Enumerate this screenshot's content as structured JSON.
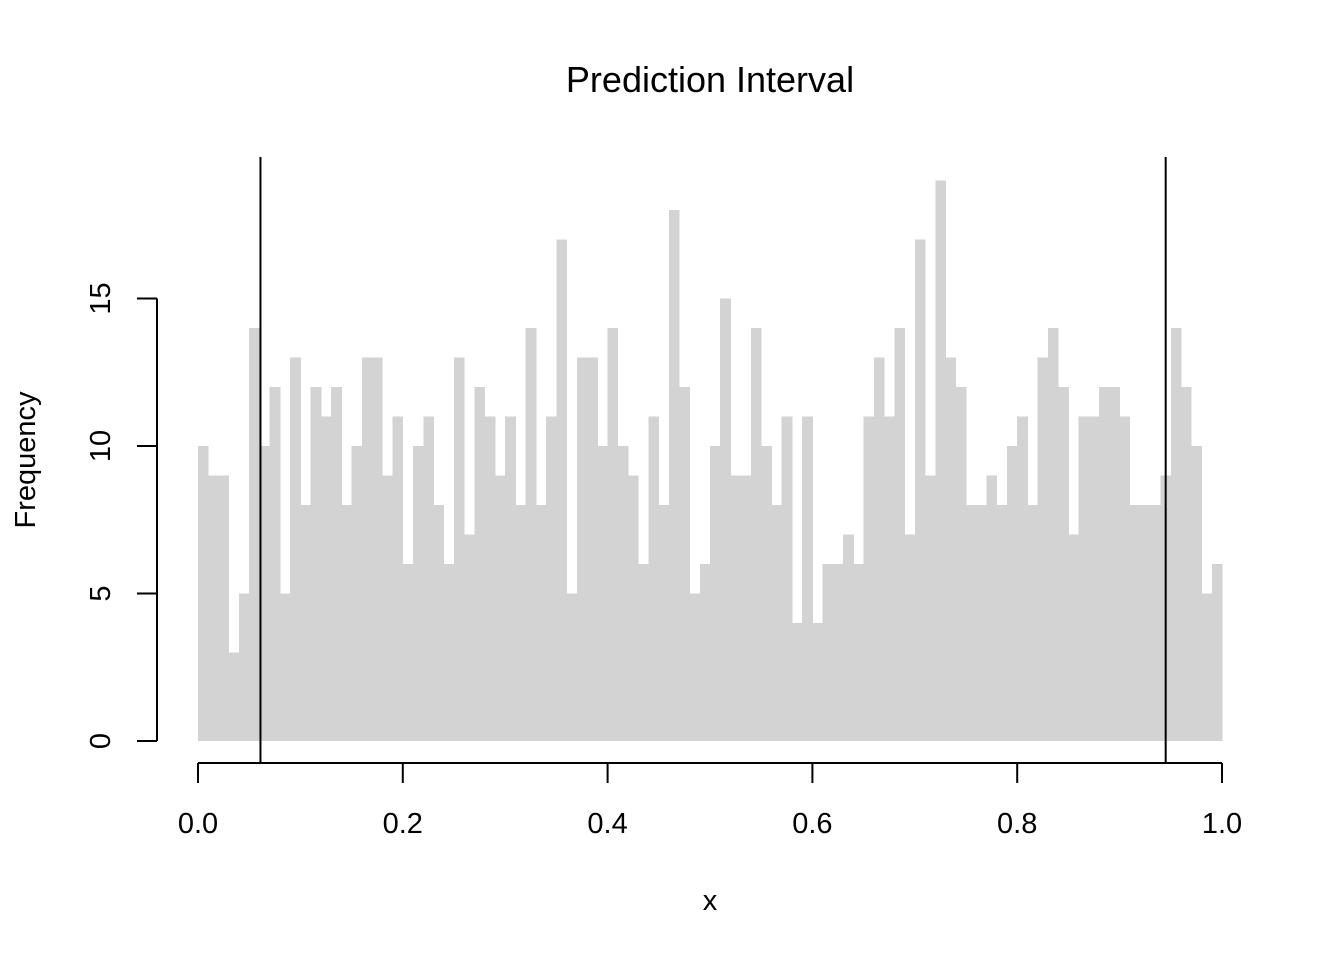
{
  "chart_data": {
    "type": "bar",
    "title": "Prediction Interval",
    "xlabel": "x",
    "ylabel": "Frequency",
    "bin_width": 0.01,
    "x_range": [
      0,
      1
    ],
    "xlim": [
      0,
      1
    ],
    "ylim": [
      0,
      19
    ],
    "x_ticks": [
      "0.0",
      "0.2",
      "0.4",
      "0.6",
      "0.8",
      "1.0"
    ],
    "y_ticks": [
      "0",
      "5",
      "10",
      "15"
    ],
    "values": [
      10,
      9,
      9,
      3,
      5,
      14,
      10,
      12,
      5,
      13,
      8,
      12,
      11,
      12,
      8,
      10,
      13,
      13,
      9,
      11,
      6,
      10,
      11,
      8,
      6,
      13,
      7,
      12,
      11,
      9,
      11,
      8,
      14,
      8,
      11,
      17,
      5,
      13,
      13,
      10,
      14,
      10,
      9,
      6,
      11,
      8,
      18,
      12,
      5,
      6,
      10,
      15,
      9,
      9,
      14,
      10,
      8,
      11,
      4,
      11,
      4,
      6,
      6,
      7,
      6,
      11,
      13,
      11,
      14,
      7,
      17,
      9,
      19,
      13,
      12,
      8,
      8,
      9,
      8,
      10,
      11,
      8,
      13,
      14,
      12,
      7,
      11,
      11,
      12,
      12,
      11,
      8,
      8,
      8,
      9,
      14,
      12,
      10,
      5,
      6
    ],
    "interval_lines": [
      0.061,
      0.945
    ],
    "colors": {
      "bar": "#d3d3d3",
      "line": "#000000"
    },
    "grid": false
  }
}
